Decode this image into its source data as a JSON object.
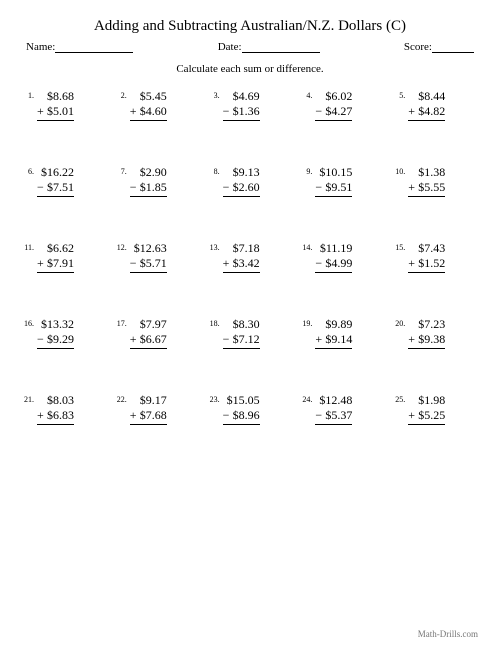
{
  "title": "Adding and Subtracting Australian/N.Z. Dollars (C)",
  "header": {
    "name_label": "Name:",
    "date_label": "Date:",
    "score_label": "Score:"
  },
  "instruction": "Calculate each sum or difference.",
  "footer": "Math-Drills.com",
  "problems": [
    {
      "n": "1.",
      "top": "$8.68",
      "op": "+",
      "bot": "$5.01"
    },
    {
      "n": "2.",
      "top": "$5.45",
      "op": "+",
      "bot": "$4.60"
    },
    {
      "n": "3.",
      "top": "$4.69",
      "op": "−",
      "bot": "$1.36"
    },
    {
      "n": "4.",
      "top": "$6.02",
      "op": "−",
      "bot": "$4.27"
    },
    {
      "n": "5.",
      "top": "$8.44",
      "op": "+",
      "bot": "$4.82"
    },
    {
      "n": "6.",
      "top": "$16.22",
      "op": "−",
      "bot": "$7.51"
    },
    {
      "n": "7.",
      "top": "$2.90",
      "op": "−",
      "bot": "$1.85"
    },
    {
      "n": "8.",
      "top": "$9.13",
      "op": "−",
      "bot": "$2.60"
    },
    {
      "n": "9.",
      "top": "$10.15",
      "op": "−",
      "bot": "$9.51"
    },
    {
      "n": "10.",
      "top": "$1.38",
      "op": "+",
      "bot": "$5.55"
    },
    {
      "n": "11.",
      "top": "$6.62",
      "op": "+",
      "bot": "$7.91"
    },
    {
      "n": "12.",
      "top": "$12.63",
      "op": "−",
      "bot": "$5.71"
    },
    {
      "n": "13.",
      "top": "$7.18",
      "op": "+",
      "bot": "$3.42"
    },
    {
      "n": "14.",
      "top": "$11.19",
      "op": "−",
      "bot": "$4.99"
    },
    {
      "n": "15.",
      "top": "$7.43",
      "op": "+",
      "bot": "$1.52"
    },
    {
      "n": "16.",
      "top": "$13.32",
      "op": "−",
      "bot": "$9.29"
    },
    {
      "n": "17.",
      "top": "$7.97",
      "op": "+",
      "bot": "$6.67"
    },
    {
      "n": "18.",
      "top": "$8.30",
      "op": "−",
      "bot": "$7.12"
    },
    {
      "n": "19.",
      "top": "$9.89",
      "op": "+",
      "bot": "$9.14"
    },
    {
      "n": "20.",
      "top": "$7.23",
      "op": "+",
      "bot": "$9.38"
    },
    {
      "n": "21.",
      "top": "$8.03",
      "op": "+",
      "bot": "$6.83"
    },
    {
      "n": "22.",
      "top": "$9.17",
      "op": "+",
      "bot": "$7.68"
    },
    {
      "n": "23.",
      "top": "$15.05",
      "op": "−",
      "bot": "$8.96"
    },
    {
      "n": "24.",
      "top": "$12.48",
      "op": "−",
      "bot": "$5.37"
    },
    {
      "n": "25.",
      "top": "$1.98",
      "op": "+",
      "bot": "$5.25"
    }
  ]
}
